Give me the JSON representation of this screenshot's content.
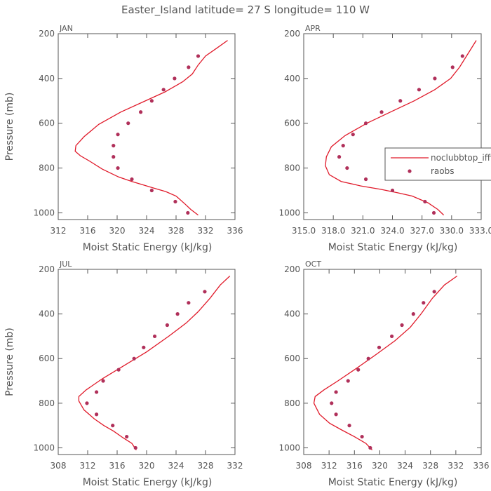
{
  "title": "Easter_Island  latitude= 27 S longitude= 110 W",
  "colors": {
    "model": "#e01a2a",
    "obs": "#b0305a",
    "axis": "#555555"
  },
  "legend": {
    "entries": [
      {
        "label": "noclubbtop_iffix",
        "marker": "line"
      },
      {
        "label": "raobs",
        "marker": "dot"
      }
    ],
    "placement": "right, inside APR panel"
  },
  "chart_data": [
    {
      "type": "line",
      "panel": "JAN",
      "xlabel": "Moist Static Energy (kJ/kg)",
      "ylabel": "Pressure (mb)",
      "xlim": [
        312,
        336
      ],
      "ylim": [
        1030,
        200
      ],
      "xticks": [
        "312",
        "316",
        "320",
        "324",
        "328",
        "332",
        "336"
      ],
      "yticks": [
        "200",
        "400",
        "600",
        "800",
        "1000"
      ],
      "grid": false,
      "series": [
        {
          "name": "noclubbtop_iffix",
          "style": "line",
          "x": [
            331.0,
            330.0,
            329.2,
            328.0,
            326.6,
            325.0,
            323.5,
            322.0,
            320.2,
            318.0,
            316.3,
            315.0,
            314.3,
            314.4,
            315.5,
            317.5,
            320.5,
            323.5,
            326.5,
            328.9,
            330.2,
            331.0,
            332.0,
            333.5,
            335.0
          ],
          "y": [
            1010,
            985,
            960,
            925,
            905,
            890,
            875,
            860,
            840,
            805,
            770,
            745,
            725,
            700,
            660,
            605,
            550,
            505,
            460,
            415,
            380,
            340,
            300,
            265,
            230
          ]
        },
        {
          "name": "raobs",
          "style": "dot",
          "x": [
            329.6,
            327.9,
            324.7,
            322.0,
            320.1,
            319.5,
            319.5,
            320.1,
            321.5,
            323.2,
            324.7,
            326.3,
            327.8,
            329.7,
            331.0
          ],
          "y": [
            1000,
            950,
            900,
            850,
            800,
            750,
            700,
            650,
            600,
            550,
            500,
            450,
            400,
            350,
            300
          ]
        }
      ]
    },
    {
      "type": "line",
      "panel": "APR",
      "xlabel": "Moist Static Energy (kJ/kg)",
      "ylabel": "",
      "xlim": [
        315,
        333
      ],
      "ylim": [
        1030,
        200
      ],
      "xticks": [
        "315.0",
        "318.0",
        "321.0",
        "324.0",
        "327.0",
        "330.0",
        "333.0"
      ],
      "yticks": [
        "200",
        "400",
        "600",
        "800",
        "1000"
      ],
      "grid": false,
      "series": [
        {
          "name": "noclubbtop_iffix",
          "style": "line",
          "x": [
            329.2,
            328.6,
            327.6,
            326.0,
            324.5,
            322.8,
            320.8,
            318.8,
            317.6,
            317.2,
            317.3,
            317.8,
            319.2,
            321.4,
            323.8,
            326.2,
            328.3,
            329.9,
            330.8,
            331.8,
            332.5
          ],
          "y": [
            1010,
            985,
            955,
            925,
            910,
            895,
            880,
            860,
            830,
            790,
            750,
            705,
            655,
            600,
            550,
            500,
            450,
            400,
            350,
            280,
            230
          ]
        },
        {
          "name": "raobs",
          "style": "dot",
          "x": [
            328.2,
            327.3,
            324.0,
            321.3,
            319.4,
            318.6,
            319.0,
            320.0,
            321.3,
            322.9,
            324.8,
            326.7,
            328.3,
            330.1,
            331.1
          ],
          "y": [
            1000,
            950,
            900,
            850,
            800,
            750,
            700,
            650,
            600,
            550,
            500,
            450,
            400,
            350,
            300
          ]
        }
      ]
    },
    {
      "type": "line",
      "panel": "JUL",
      "xlabel": "Moist Static Energy (kJ/kg)",
      "ylabel": "Pressure (mb)",
      "xlim": [
        308,
        332
      ],
      "ylim": [
        1030,
        200
      ],
      "xticks": [
        "308",
        "312",
        "316",
        "320",
        "324",
        "328",
        "332"
      ],
      "yticks": [
        "200",
        "400",
        "600",
        "800",
        "1000"
      ],
      "grid": false,
      "series": [
        {
          "name": "noclubbtop_iffix",
          "style": "line",
          "x": [
            318.6,
            318.0,
            316.8,
            315.5,
            314.2,
            312.9,
            311.5,
            310.8,
            310.8,
            311.8,
            314.0,
            317.0,
            320.0,
            323.0,
            325.4,
            327.0,
            328.6,
            330.0,
            331.3
          ],
          "y": [
            1010,
            980,
            955,
            925,
            900,
            870,
            830,
            790,
            770,
            740,
            690,
            630,
            570,
            500,
            440,
            390,
            330,
            270,
            230
          ]
        },
        {
          "name": "raobs",
          "style": "dot",
          "x": [
            318.5,
            317.3,
            315.4,
            313.2,
            311.9,
            313.2,
            314.1,
            316.2,
            318.3,
            319.6,
            321.1,
            322.8,
            324.2,
            325.7,
            327.9
          ],
          "y": [
            1000,
            950,
            900,
            850,
            800,
            750,
            700,
            650,
            600,
            550,
            500,
            450,
            400,
            350,
            300
          ]
        }
      ]
    },
    {
      "type": "line",
      "panel": "OCT",
      "xlabel": "Moist Static Energy (kJ/kg)",
      "ylabel": "",
      "xlim": [
        308,
        336
      ],
      "ylim": [
        1030,
        200
      ],
      "xticks": [
        "308",
        "312",
        "316",
        "320",
        "324",
        "328",
        "332",
        "336"
      ],
      "yticks": [
        "200",
        "400",
        "600",
        "800",
        "1000"
      ],
      "grid": false,
      "series": [
        {
          "name": "noclubbtop_iffix",
          "style": "line",
          "x": [
            318.8,
            317.8,
            316.0,
            314.0,
            312.1,
            310.5,
            309.6,
            309.8,
            311.2,
            313.4,
            316.5,
            319.5,
            322.4,
            324.8,
            326.5,
            328.3,
            330.2,
            332.2
          ],
          "y": [
            1010,
            980,
            950,
            920,
            890,
            850,
            800,
            770,
            740,
            700,
            640,
            580,
            520,
            460,
            400,
            330,
            270,
            230
          ]
        },
        {
          "name": "raobs",
          "style": "dot",
          "x": [
            318.5,
            317.2,
            315.2,
            313.1,
            312.4,
            313.1,
            315.0,
            316.6,
            318.2,
            319.9,
            321.9,
            323.5,
            325.3,
            326.9,
            328.6
          ],
          "y": [
            1000,
            950,
            900,
            850,
            800,
            750,
            700,
            650,
            600,
            550,
            500,
            450,
            400,
            350,
            300
          ]
        }
      ]
    }
  ]
}
